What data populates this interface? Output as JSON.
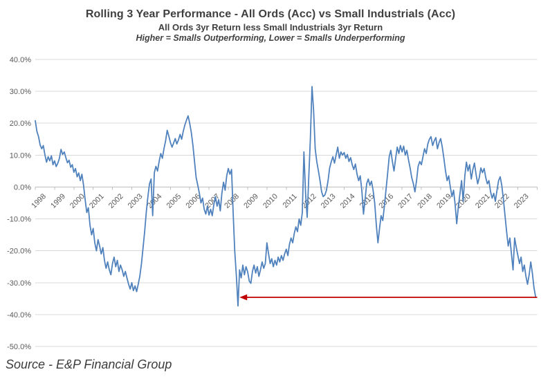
{
  "chart_data": {
    "type": "line",
    "title": "Rolling 3 Year Performance - All Ords (Acc) vs Small Industrials (Acc)",
    "subtitle": "All Ords 3yr Return less Small Industrials 3yr Return",
    "note": "Higher = Smalls Outperforming, Lower = Smalls Underperforming",
    "legend": "none",
    "grid": "horizontal",
    "ylim": [
      -50,
      40
    ],
    "y_ticks": [
      40,
      30,
      20,
      10,
      0,
      -10,
      -20,
      -30,
      -40,
      -50
    ],
    "y_tick_labels": [
      "40.0%",
      "30.0%",
      "20.0%",
      "10.0%",
      "0.0%",
      "-10.0%",
      "-20.0%",
      "-30.0%",
      "-40.0%",
      "-50.0%"
    ],
    "x_tick_labels": [
      "1998",
      "1999",
      "2000",
      "2001",
      "2002",
      "2003",
      "2004",
      "2005",
      "2006",
      "2007",
      "2008",
      "2009",
      "2010",
      "2011",
      "2012",
      "2013",
      "2014",
      "2015",
      "2016",
      "2017",
      "2018",
      "2019",
      "2020",
      "2021",
      "2022",
      "2023"
    ],
    "x_start_year": 1998,
    "points_per_year": 12,
    "colors": {
      "line": "#4F81BD",
      "grid": "#D9D9D9",
      "axis": "#BFBFBF",
      "arrow": "#C00000",
      "text": "#595959"
    },
    "series": [
      {
        "color": "#4F81BD",
        "unit": "percent",
        "values_by_year": [
          [
            20.8,
            17.5,
            15.8,
            13.2,
            12.0,
            13.0,
            10.0,
            7.8,
            9.5,
            8.2,
            9.8,
            7.0
          ],
          [
            8.2,
            6.4,
            7.5,
            9.0,
            11.8,
            10.2,
            11.0,
            9.2,
            7.6,
            8.4,
            6.2,
            7.0
          ],
          [
            4.6,
            5.8,
            3.2,
            4.4,
            2.0,
            4.0,
            0.5,
            -4.0,
            -8.0,
            -6.5,
            -12.0,
            -15.0
          ],
          [
            -13.0,
            -17.5,
            -20.0,
            -16.5,
            -18.5,
            -21.0,
            -19.0,
            -23.0,
            -25.5,
            -23.5,
            -26.0,
            -27.5
          ],
          [
            -24.0,
            -22.0,
            -25.0,
            -23.0,
            -26.5,
            -24.5,
            -26.0,
            -28.0,
            -26.5,
            -28.5,
            -30.5,
            -32.0
          ],
          [
            -30.0,
            -32.5,
            -31.0,
            -32.8,
            -30.5,
            -28.0,
            -24.0,
            -19.0,
            -14.0,
            -8.0,
            -3.0,
            1.0
          ],
          [
            2.5,
            -9.0,
            4.5,
            6.5,
            5.0,
            8.0,
            10.5,
            9.0,
            12.0,
            14.5,
            17.8,
            16.0
          ],
          [
            14.0,
            12.5,
            13.8,
            15.2,
            13.5,
            14.8,
            16.5,
            15.0,
            17.5,
            19.5,
            21.0,
            22.3
          ],
          [
            20.0,
            17.0,
            13.0,
            8.0,
            3.0,
            0.5,
            -2.0,
            -5.0,
            -3.5,
            -7.0,
            -8.5,
            -6.0
          ],
          [
            -8.8,
            -7.0,
            -9.0,
            -5.5,
            -3.0,
            -6.0,
            -4.0,
            -7.5,
            -2.0,
            1.5,
            -1.0,
            3.5
          ],
          [
            5.8,
            4.0,
            5.5,
            -8.0,
            -20.0,
            -28.0,
            -37.3,
            -26.0,
            -28.5,
            -24.5,
            -27.5,
            -25.0
          ],
          [
            -26.5,
            -29.5,
            -30.2,
            -26.5,
            -24.5,
            -27.0,
            -25.0,
            -28.0,
            -26.0,
            -23.5,
            -25.5,
            -24.0
          ],
          [
            -17.5,
            -21.0,
            -24.0,
            -22.5,
            -25.0,
            -23.0,
            -24.5,
            -22.0,
            -23.5,
            -21.5,
            -23.0,
            -21.0
          ],
          [
            -19.5,
            -21.5,
            -18.0,
            -16.0,
            -17.5,
            -14.5,
            -12.5,
            -14.0,
            -10.0,
            -12.0,
            -8.0,
            11.0
          ],
          [
            -2.0,
            -9.5,
            3.0,
            15.0,
            31.5,
            24.0,
            12.0,
            8.0,
            5.0,
            2.0,
            -1.5,
            -3.0
          ],
          [
            -2.5,
            -1.0,
            2.0,
            6.0,
            8.0,
            9.5,
            7.5,
            10.0,
            12.5,
            9.0,
            11.0,
            10.0
          ],
          [
            10.8,
            9.0,
            10.2,
            8.0,
            9.2,
            7.0,
            5.5,
            7.2,
            4.0,
            2.0,
            3.5,
            -1.0
          ],
          [
            -8.5,
            -4.0,
            1.0,
            2.5,
            0.5,
            1.8,
            -1.0,
            -5.0,
            -12.0,
            -17.5,
            -13.0,
            -9.0
          ],
          [
            -10.5,
            -6.0,
            -1.0,
            4.0,
            9.5,
            11.5,
            8.0,
            5.0,
            9.0,
            12.5,
            10.5,
            13.0
          ],
          [
            11.0,
            12.8,
            10.0,
            11.5,
            8.5,
            6.0,
            3.0,
            1.0,
            -1.5,
            2.0,
            6.5,
            8.0
          ],
          [
            7.0,
            9.5,
            12.0,
            10.5,
            13.5,
            15.0,
            15.8,
            13.0,
            14.5,
            15.5,
            12.0,
            14.0
          ],
          [
            15.2,
            12.5,
            9.0,
            5.0,
            2.0,
            3.5,
            0.0,
            -3.0,
            -1.0,
            -5.5,
            -11.5,
            -6.0
          ],
          [
            -2.0,
            2.0,
            -4.5,
            3.5,
            7.8,
            5.0,
            7.0,
            2.5,
            5.5,
            7.5,
            4.0,
            1.0
          ],
          [
            3.0,
            6.0,
            4.5,
            5.8,
            3.0,
            1.0,
            2.0,
            -1.5,
            -3.5,
            -2.0,
            -4.5,
            -1.0
          ],
          [
            2.0,
            3.2,
            0.5,
            -4.0,
            -9.0,
            -14.0,
            -18.5,
            -16.0,
            -21.0,
            -26.0,
            -16.0,
            -19.0
          ],
          [
            -21.5,
            -24.0,
            -22.0,
            -26.5,
            -24.5,
            -28.0,
            -30.5,
            -27.5,
            -23.5,
            -27.0,
            -31.5,
            -34.5
          ]
        ]
      }
    ],
    "annotations": [
      {
        "type": "arrow",
        "direction": "left",
        "y_value": -34.6,
        "from_year": 2024.0,
        "to_year": 2008.58,
        "color": "#C00000"
      }
    ]
  },
  "footer": {
    "source": "Source - E&P Financial Group"
  }
}
